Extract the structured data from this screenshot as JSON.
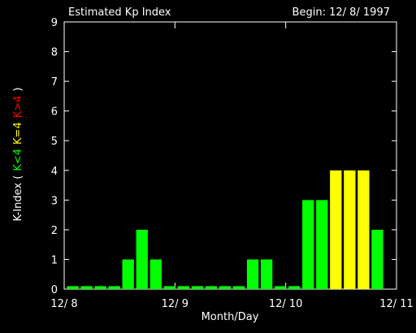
{
  "chart_data": {
    "type": "bar",
    "title": "Estimated Kp Index",
    "subtitle": "Begin: 12/ 8/ 1997",
    "x_label": "Month/Day",
    "y_label_parts": [
      {
        "text": "K-Index (",
        "color": "#ffffff"
      },
      {
        "text": "K<4",
        "color": "#00ff00"
      },
      {
        "text": "K=4",
        "color": "#ffff00"
      },
      {
        "text": "K>4",
        "color": "#ff0000"
      },
      {
        "text": ")",
        "color": "#ffffff"
      }
    ],
    "categories": [
      null,
      null,
      null,
      null,
      null,
      null,
      null,
      null,
      null,
      null,
      null,
      null,
      null,
      null,
      null,
      null,
      null,
      null,
      null,
      null,
      null,
      null,
      null,
      null
    ],
    "values": [
      0.1,
      0.1,
      0.1,
      0.1,
      1,
      2,
      1,
      0.1,
      0.1,
      0.1,
      0.1,
      0.1,
      0.1,
      1,
      1,
      0.1,
      0.1,
      3,
      3,
      4,
      4,
      4,
      2,
      null
    ],
    "bar_colors": [
      "#00ff00",
      "#00ff00",
      "#00ff00",
      "#00ff00",
      "#00ff00",
      "#00ff00",
      "#00ff00",
      "#00ff00",
      "#00ff00",
      "#00ff00",
      "#00ff00",
      "#00ff00",
      "#00ff00",
      "#00ff00",
      "#00ff00",
      "#00ff00",
      "#00ff00",
      "#00ff00",
      "#00ff00",
      "#ffff00",
      "#ffff00",
      "#ffff00",
      "#00ff00",
      null
    ],
    "xlim": [
      0,
      3
    ],
    "xticks": [
      {
        "value": 0,
        "label": "12/ 8"
      },
      {
        "value": 1,
        "label": "12/ 9"
      },
      {
        "value": 2,
        "label": "12/ 10"
      },
      {
        "value": 3,
        "label": "12/ 11"
      }
    ],
    "ylim": [
      0,
      9
    ],
    "yticks": [
      0,
      1,
      2,
      3,
      4,
      5,
      6,
      7,
      8,
      9
    ],
    "grid": false
  }
}
